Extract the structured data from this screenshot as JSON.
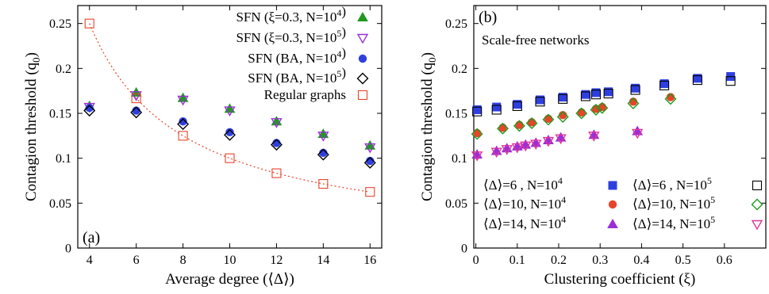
{
  "colors": {
    "green": "#1f9a1f",
    "violet": "#9a2fd6",
    "blue": "#2e3fe0",
    "black": "#000000",
    "red": "#e8442a",
    "magenta": "#e0359a"
  },
  "chart_data": [
    {
      "type": "scatter",
      "panel_label": "(a)",
      "title": "",
      "xlabel": "Average degree (⟨Δ⟩)",
      "ylabel": "Contagion threshold (q₀)",
      "xlim": [
        3.5,
        16.5
      ],
      "ylim": [
        0,
        0.27
      ],
      "xticks": [
        4,
        6,
        8,
        10,
        12,
        14,
        16
      ],
      "yticks": [
        0,
        0.05,
        0.1,
        0.15,
        0.2,
        0.25
      ],
      "xtick_labels": [
        "4",
        "6",
        "8",
        "10",
        "12",
        "14",
        "16"
      ],
      "ytick_labels": [
        "0",
        "0.05",
        "0.1",
        "0.15",
        "0.2",
        "0.25"
      ],
      "legend_position": "top-right",
      "series": [
        {
          "name": "SFN (ξ=0.3, N=10⁴)",
          "marker": "triangle-up-filled",
          "color": "#1f9a1f",
          "x": [
            4,
            6,
            8,
            10,
            12,
            14,
            16
          ],
          "y": [
            0.158,
            0.173,
            0.167,
            0.155,
            0.141,
            0.127,
            0.114
          ]
        },
        {
          "name": "SFN (ξ=0.3, N=10⁵)",
          "marker": "triangle-down-open",
          "color": "#9a2fd6",
          "x": [
            4,
            6,
            8,
            10,
            12,
            14,
            16
          ],
          "y": [
            0.157,
            0.17,
            0.165,
            0.153,
            0.14,
            0.125,
            0.112
          ]
        },
        {
          "name": "SFN (BA, N=10⁴)",
          "marker": "circle-filled",
          "color": "#2e3fe0",
          "x": [
            4,
            6,
            8,
            10,
            12,
            14,
            16
          ],
          "y": [
            0.156,
            0.153,
            0.141,
            0.129,
            0.117,
            0.106,
            0.097
          ]
        },
        {
          "name": "SFN (BA, N=10⁵)",
          "marker": "diamond-open",
          "color": "#000000",
          "x": [
            4,
            6,
            8,
            10,
            12,
            14,
            16
          ],
          "y": [
            0.153,
            0.151,
            0.138,
            0.126,
            0.115,
            0.104,
            0.095
          ]
        },
        {
          "name": "Regular graphs",
          "marker": "square-open",
          "color": "#e8442a",
          "x": [
            4,
            6,
            8,
            10,
            12,
            14,
            16
          ],
          "y": [
            0.25,
            0.1667,
            0.125,
            0.1,
            0.0833,
            0.0714,
            0.0625
          ]
        }
      ],
      "fit_line": {
        "formula": "1/x",
        "color": "#e8442a"
      }
    },
    {
      "type": "scatter",
      "panel_label": "(b)",
      "title": "",
      "annotation": "Scale-free networks",
      "xlabel": "Clustering coefficient (ξ)",
      "ylabel": "Contagion threshold (q₀)",
      "xlim": [
        -0.005,
        0.7
      ],
      "ylim": [
        0,
        0.27
      ],
      "xticks": [
        0,
        0.1,
        0.2,
        0.3,
        0.4,
        0.5,
        0.6
      ],
      "yticks": [
        0,
        0.05,
        0.1,
        0.15,
        0.2,
        0.25
      ],
      "xtick_labels": [
        "0",
        "0.1",
        "0.2",
        "0.3",
        "0.4",
        "0.5",
        "0.6"
      ],
      "ytick_labels": [
        "0",
        "0.05",
        "0.1",
        "0.15",
        "0.2",
        "0.25"
      ],
      "legend_position": "bottom",
      "series": [
        {
          "name": "⟨Δ⟩=6 , N=10⁴",
          "marker": "square-filled",
          "color": "#2e3fe0",
          "x": [
            0.003,
            0.05,
            0.1,
            0.155,
            0.21,
            0.265,
            0.29,
            0.32,
            0.385,
            0.455,
            0.535,
            0.615
          ],
          "y": [
            0.154,
            0.157,
            0.16,
            0.165,
            0.168,
            0.171,
            0.173,
            0.174,
            0.178,
            0.183,
            0.189,
            0.191
          ]
        },
        {
          "name": "⟨Δ⟩=6 , N=10⁵",
          "marker": "square-open",
          "color": "#000000",
          "x": [
            0.003,
            0.05,
            0.1,
            0.155,
            0.21,
            0.265,
            0.29,
            0.32,
            0.385,
            0.455,
            0.535,
            0.615
          ],
          "y": [
            0.152,
            0.154,
            0.158,
            0.163,
            0.166,
            0.169,
            0.171,
            0.172,
            0.176,
            0.181,
            0.187,
            0.186
          ]
        },
        {
          "name": "⟨Δ⟩=10, N=10⁴",
          "marker": "circle-filled",
          "color": "#e8442a",
          "x": [
            0.003,
            0.065,
            0.105,
            0.135,
            0.175,
            0.21,
            0.255,
            0.29,
            0.305,
            0.38,
            0.47
          ],
          "y": [
            0.128,
            0.134,
            0.137,
            0.14,
            0.144,
            0.148,
            0.151,
            0.155,
            0.157,
            0.163,
            0.168
          ]
        },
        {
          "name": "⟨Δ⟩=10, N=10⁵",
          "marker": "diamond-open",
          "color": "#1f9a1f",
          "x": [
            0.003,
            0.065,
            0.105,
            0.135,
            0.175,
            0.21,
            0.255,
            0.29,
            0.305,
            0.38,
            0.47
          ],
          "y": [
            0.127,
            0.133,
            0.136,
            0.139,
            0.143,
            0.146,
            0.15,
            0.154,
            0.156,
            0.161,
            0.166
          ]
        },
        {
          "name": "⟨Δ⟩=14, N=10⁴",
          "marker": "triangle-up-filled",
          "color": "#9a2fd6",
          "x": [
            0.003,
            0.05,
            0.075,
            0.1,
            0.12,
            0.145,
            0.175,
            0.205,
            0.285,
            0.39
          ],
          "y": [
            0.104,
            0.108,
            0.111,
            0.113,
            0.115,
            0.117,
            0.12,
            0.123,
            0.126,
            0.13
          ]
        },
        {
          "name": "⟨Δ⟩=14, N=10⁵",
          "marker": "triangle-down-open",
          "color": "#e0359a",
          "x": [
            0.003,
            0.05,
            0.075,
            0.1,
            0.12,
            0.145,
            0.175,
            0.205,
            0.285,
            0.39
          ],
          "y": [
            0.103,
            0.107,
            0.11,
            0.112,
            0.114,
            0.116,
            0.119,
            0.122,
            0.125,
            0.128
          ]
        }
      ]
    }
  ]
}
